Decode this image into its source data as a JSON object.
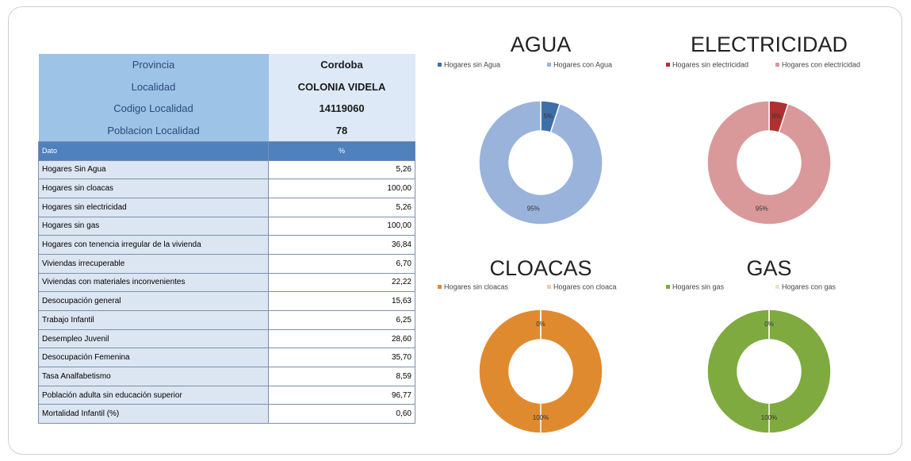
{
  "table": {
    "info": [
      [
        "Provincia",
        "Cordoba"
      ],
      [
        "Localidad",
        "COLONIA VIDELA"
      ],
      [
        "Codigo Localidad",
        "14119060"
      ],
      [
        "Poblacion Localidad",
        "78"
      ]
    ],
    "header": [
      "Dato",
      "%"
    ],
    "rows": [
      [
        "Hogares Sin Agua",
        "5,26"
      ],
      [
        "Hogares sin cloacas",
        "100,00"
      ],
      [
        "Hogares sin electricidad",
        "5,26"
      ],
      [
        "Hogares sin gas",
        "100,00"
      ],
      [
        "Hogares con tenencia irregular de la vivienda",
        "36,84"
      ],
      [
        "Viviendas irrecuperable",
        "6,70"
      ],
      [
        "Viviendas con materiales inconvenientes",
        "22,22"
      ],
      [
        "Desocupación general",
        "15,63"
      ],
      [
        "Trabajo Infantil",
        "6,25"
      ],
      [
        "Desempleo Juvenil",
        "28,60"
      ],
      [
        "Desocupación Femenina",
        "35,70"
      ],
      [
        "Tasa Analfabetismo",
        "8,59"
      ],
      [
        "Población adulta  sin educación superior",
        "96,77"
      ],
      [
        "Mortalidad Infantil (%)",
        "0,60"
      ]
    ]
  },
  "chart_data": [
    {
      "type": "donut",
      "title": "AGUA",
      "categories": [
        "Hogares sin Agua",
        "Hogares con Agua"
      ],
      "values": [
        5,
        95
      ],
      "value_labels": [
        "5%",
        "95%"
      ],
      "colors": [
        "#3f6fa8",
        "#9ab3db"
      ]
    },
    {
      "type": "donut",
      "title": "ELECTRICIDAD",
      "categories": [
        "Hogares sin electricidad",
        "Hogares con electricidad"
      ],
      "values": [
        5,
        95
      ],
      "value_labels": [
        "5%",
        "95%"
      ],
      "colors": [
        "#b03030",
        "#d9999a"
      ]
    },
    {
      "type": "donut",
      "title": "CLOACAS",
      "categories": [
        "Hogares sin cloacas",
        "Hogares con cloaca"
      ],
      "values": [
        100,
        0
      ],
      "value_labels": [
        "100%",
        "0%"
      ],
      "colors": [
        "#e08a30",
        "#f3c9a8"
      ]
    },
    {
      "type": "donut",
      "title": "GAS",
      "categories": [
        "Hogares sin gas",
        "Hogares con gas"
      ],
      "values": [
        100,
        0
      ],
      "value_labels": [
        "100%",
        "0%"
      ],
      "colors": [
        "#7faa3f",
        "#e3ebc4"
      ]
    }
  ]
}
